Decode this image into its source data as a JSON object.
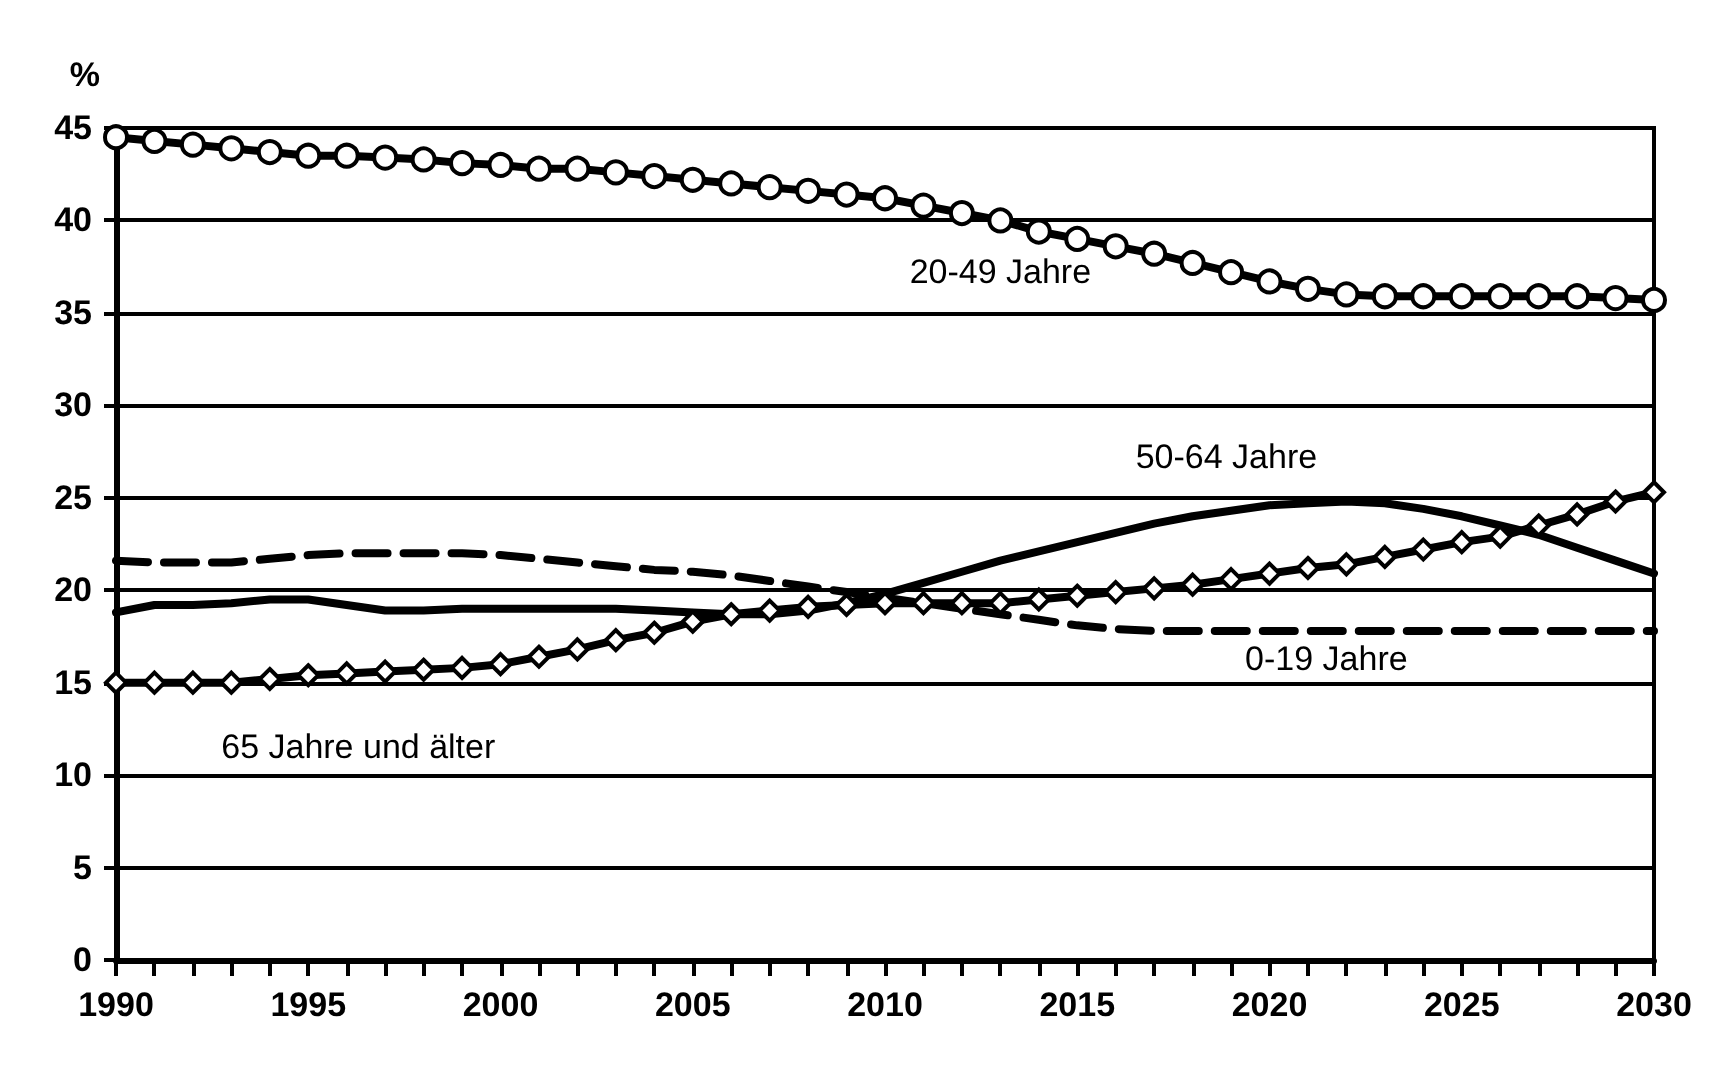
{
  "chart_data": {
    "type": "line",
    "ylabel": "%",
    "x": [
      1990,
      1991,
      1992,
      1993,
      1994,
      1995,
      1996,
      1997,
      1998,
      1999,
      2000,
      2001,
      2002,
      2003,
      2004,
      2005,
      2006,
      2007,
      2008,
      2009,
      2010,
      2011,
      2012,
      2013,
      2014,
      2015,
      2016,
      2017,
      2018,
      2019,
      2020,
      2021,
      2022,
      2023,
      2024,
      2025,
      2026,
      2027,
      2028,
      2029,
      2030
    ],
    "xlim": [
      1990,
      2030
    ],
    "xticks": [
      1990,
      {
        "value": 1991,
        "label": null
      },
      {
        "value": 1992,
        "label": null
      },
      {
        "value": 1993,
        "label": null
      },
      {
        "value": 1994,
        "label": null
      },
      1995,
      {
        "value": 1996,
        "label": null
      },
      {
        "value": 1997,
        "label": null
      },
      {
        "value": 1998,
        "label": null
      },
      {
        "value": 1999,
        "label": null
      },
      2000,
      {
        "value": 2001,
        "label": null
      },
      {
        "value": 2002,
        "label": null
      },
      {
        "value": 2003,
        "label": null
      },
      {
        "value": 2004,
        "label": null
      },
      2005,
      {
        "value": 2006,
        "label": null
      },
      {
        "value": 2007,
        "label": null
      },
      {
        "value": 2008,
        "label": null
      },
      {
        "value": 2009,
        "label": null
      },
      2010,
      {
        "value": 2011,
        "label": null
      },
      {
        "value": 2012,
        "label": null
      },
      {
        "value": 2013,
        "label": null
      },
      {
        "value": 2014,
        "label": null
      },
      2015,
      {
        "value": 2016,
        "label": null
      },
      {
        "value": 2017,
        "label": null
      },
      {
        "value": 2018,
        "label": null
      },
      {
        "value": 2019,
        "label": null
      },
      2020,
      {
        "value": 2021,
        "label": null
      },
      {
        "value": 2022,
        "label": null
      },
      {
        "value": 2023,
        "label": null
      },
      {
        "value": 2024,
        "label": null
      },
      2025,
      {
        "value": 2026,
        "label": null
      },
      {
        "value": 2027,
        "label": null
      },
      {
        "value": 2028,
        "label": null
      },
      {
        "value": 2029,
        "label": null
      },
      2030
    ],
    "ylim": [
      0,
      45
    ],
    "yticks": [
      0,
      5,
      10,
      15,
      20,
      25,
      30,
      35,
      40,
      45
    ],
    "grid": "y",
    "legend": false,
    "series": [
      {
        "name": "20-49 Jahre",
        "color": "#000000",
        "marker": "circle",
        "line_style": "solid",
        "values": [
          44.5,
          44.3,
          44.1,
          43.9,
          43.7,
          43.5,
          43.5,
          43.4,
          43.3,
          43.1,
          43.0,
          42.8,
          42.8,
          42.6,
          42.4,
          42.2,
          42.0,
          41.8,
          41.6,
          41.4,
          41.2,
          40.8,
          40.4,
          40.0,
          39.4,
          39.0,
          38.6,
          38.2,
          37.7,
          37.2,
          36.7,
          36.3,
          36.0,
          35.9,
          35.9,
          35.9,
          35.9,
          35.9,
          35.9,
          35.8,
          35.7
        ]
      },
      {
        "name": "50-64 Jahre",
        "color": "#000000",
        "marker": "none",
        "line_style": "solid",
        "values": [
          18.8,
          19.2,
          19.2,
          19.3,
          19.5,
          19.5,
          19.2,
          18.9,
          18.9,
          19.0,
          19.0,
          19.0,
          19.0,
          19.0,
          18.9,
          18.8,
          18.7,
          18.7,
          18.9,
          19.3,
          19.8,
          20.4,
          21.0,
          21.6,
          22.1,
          22.6,
          23.1,
          23.6,
          24.0,
          24.3,
          24.6,
          24.7,
          24.8,
          24.7,
          24.4,
          24.0,
          23.5,
          23.0,
          22.3,
          21.6,
          20.9
        ]
      },
      {
        "name": "0-19 Jahre",
        "color": "#000000",
        "marker": "none",
        "line_style": "dashed",
        "values": [
          21.6,
          21.5,
          21.5,
          21.5,
          21.7,
          21.9,
          22.0,
          22.0,
          22.0,
          22.0,
          21.9,
          21.7,
          21.5,
          21.3,
          21.1,
          21.0,
          20.8,
          20.5,
          20.2,
          19.9,
          19.6,
          19.3,
          19.0,
          18.7,
          18.4,
          18.1,
          17.9,
          17.8,
          17.8,
          17.8,
          17.8,
          17.8,
          17.8,
          17.8,
          17.8,
          17.8,
          17.8,
          17.8,
          17.8,
          17.8,
          17.8
        ]
      },
      {
        "name": "65 Jahre und älter",
        "color": "#000000",
        "marker": "diamond",
        "line_style": "solid",
        "values": [
          15.0,
          15.0,
          15.0,
          15.0,
          15.2,
          15.4,
          15.5,
          15.6,
          15.7,
          15.8,
          16.0,
          16.4,
          16.8,
          17.3,
          17.7,
          18.3,
          18.7,
          18.9,
          19.1,
          19.2,
          19.3,
          19.3,
          19.3,
          19.3,
          19.5,
          19.7,
          19.9,
          20.1,
          20.3,
          20.6,
          20.9,
          21.2,
          21.4,
          21.8,
          22.2,
          22.6,
          22.9,
          23.5,
          24.1,
          24.8,
          25.3
        ]
      }
    ]
  }
}
